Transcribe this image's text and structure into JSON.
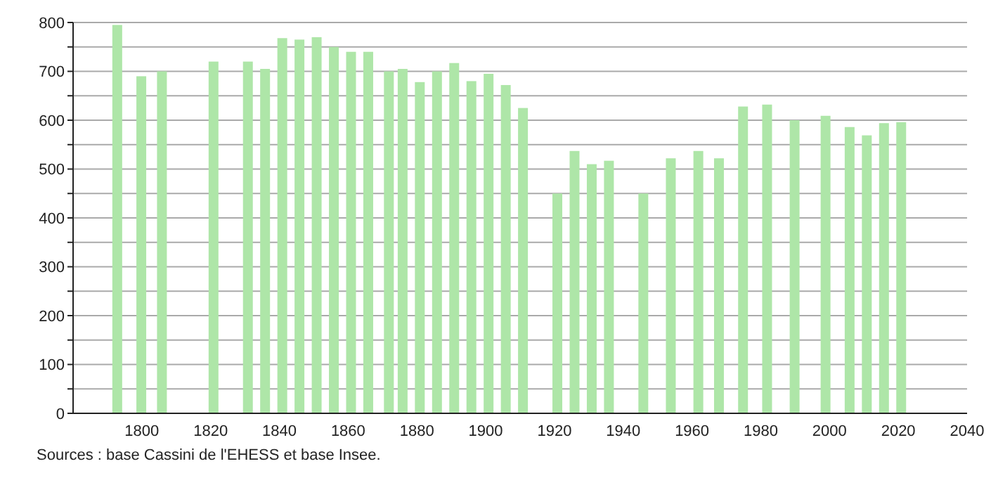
{
  "chart_data": {
    "type": "bar",
    "x": [
      1793,
      1800,
      1806,
      1821,
      1831,
      1836,
      1841,
      1846,
      1851,
      1856,
      1861,
      1866,
      1872,
      1876,
      1881,
      1886,
      1891,
      1896,
      1901,
      1906,
      1911,
      1921,
      1926,
      1931,
      1936,
      1946,
      1954,
      1962,
      1968,
      1975,
      1982,
      1990,
      1999,
      2006,
      2011,
      2016,
      2021
    ],
    "values": [
      795,
      690,
      700,
      720,
      720,
      705,
      768,
      765,
      770,
      750,
      740,
      740,
      700,
      705,
      678,
      700,
      717,
      680,
      695,
      672,
      625,
      450,
      537,
      510,
      517,
      450,
      522,
      537,
      522,
      628,
      632,
      600,
      609,
      586,
      569,
      594,
      596
    ],
    "color": "#aee6a8",
    "xlim": [
      1780,
      2040
    ],
    "xticks": [
      1800,
      1820,
      1840,
      1860,
      1880,
      1900,
      1920,
      1940,
      1960,
      1980,
      2000,
      2020,
      2040
    ],
    "ylim": [
      0,
      800
    ],
    "yticks": [
      0,
      {
        "value": 50,
        "label": null
      },
      100,
      {
        "value": 150,
        "label": null
      },
      200,
      {
        "value": 250,
        "label": null
      },
      300,
      {
        "value": 350,
        "label": null
      },
      400,
      {
        "value": 450,
        "label": null
      },
      500,
      {
        "value": 550,
        "label": null
      },
      600,
      {
        "value": 650,
        "label": null
      },
      700,
      {
        "value": 750,
        "label": null
      },
      800
    ],
    "grid": "y",
    "annotations": [
      "Sources : base Cassini de l'EHESS et base Insee."
    ]
  }
}
